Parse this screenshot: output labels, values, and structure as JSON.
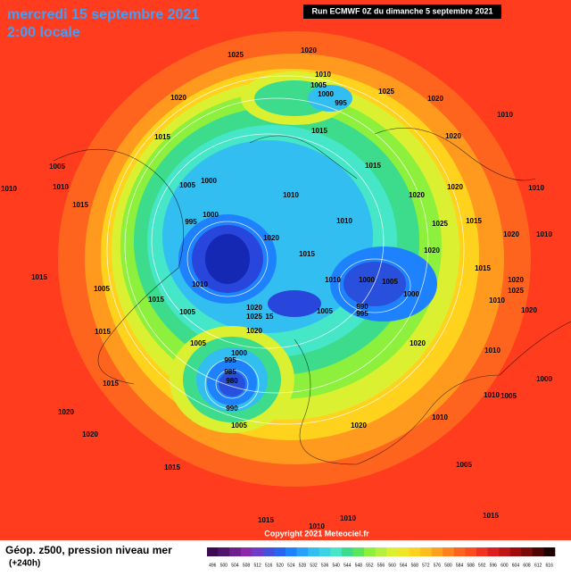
{
  "header": {
    "date": "mercredi 15 septembre 2021",
    "time": "2:00 locale",
    "run": "Run ECMWF 0Z du dimanche 5 septembre 2021"
  },
  "footer": {
    "title": "Géop. z500, pression niveau mer",
    "lead": "(+240h)",
    "copyright": "Copyright 2021 Meteociel.fr"
  },
  "isobar_labels": [
    1025,
    1020,
    1010,
    1005,
    1000,
    995,
    1025,
    1020,
    1020,
    1015,
    1010,
    1010,
    1005,
    1010,
    1015,
    1015,
    1020,
    1015,
    1005,
    1000,
    1000,
    995,
    1010,
    1020,
    1020,
    1010,
    1025,
    1015,
    1020,
    1010,
    1020,
    1015,
    1020,
    1010,
    1015,
    1005,
    1010,
    1015,
    1005,
    1020,
    1025,
    15,
    1005,
    1010,
    1000,
    1005,
    1000,
    990,
    995,
    1015,
    1010,
    1020,
    1025,
    1020,
    1020,
    1015,
    1005,
    1000,
    995,
    985,
    980,
    990,
    1005,
    1020,
    1015,
    1010,
    1010,
    1005,
    1000,
    1010,
    1020,
    1020,
    1020,
    1015,
    1005,
    1015,
    1010,
    1010,
    1015
  ],
  "colorbar": {
    "ticks": [
      496,
      500,
      504,
      508,
      512,
      516,
      520,
      524,
      528,
      532,
      536,
      540,
      544,
      548,
      552,
      556,
      560,
      564,
      568,
      572,
      576,
      580,
      584,
      588,
      592,
      596,
      600,
      604,
      608,
      612,
      616
    ],
    "colors": [
      "#3c0a50",
      "#50146e",
      "#6e1e8c",
      "#8c28aa",
      "#6e3cc8",
      "#4650dc",
      "#2864f0",
      "#1e82ff",
      "#28a0ff",
      "#32bef0",
      "#3cd2e6",
      "#46e6c8",
      "#3cdc8c",
      "#5ae65a",
      "#8cf03c",
      "#b4f03c",
      "#dcf032",
      "#f0e628",
      "#ffd21e",
      "#ffbe1e",
      "#ffa01e",
      "#ff821e",
      "#ff641e",
      "#ff4b1e",
      "#f0321e",
      "#dc1e1e",
      "#be1414",
      "#a00a0a",
      "#780a0a",
      "#500505",
      "#1e0000"
    ]
  }
}
